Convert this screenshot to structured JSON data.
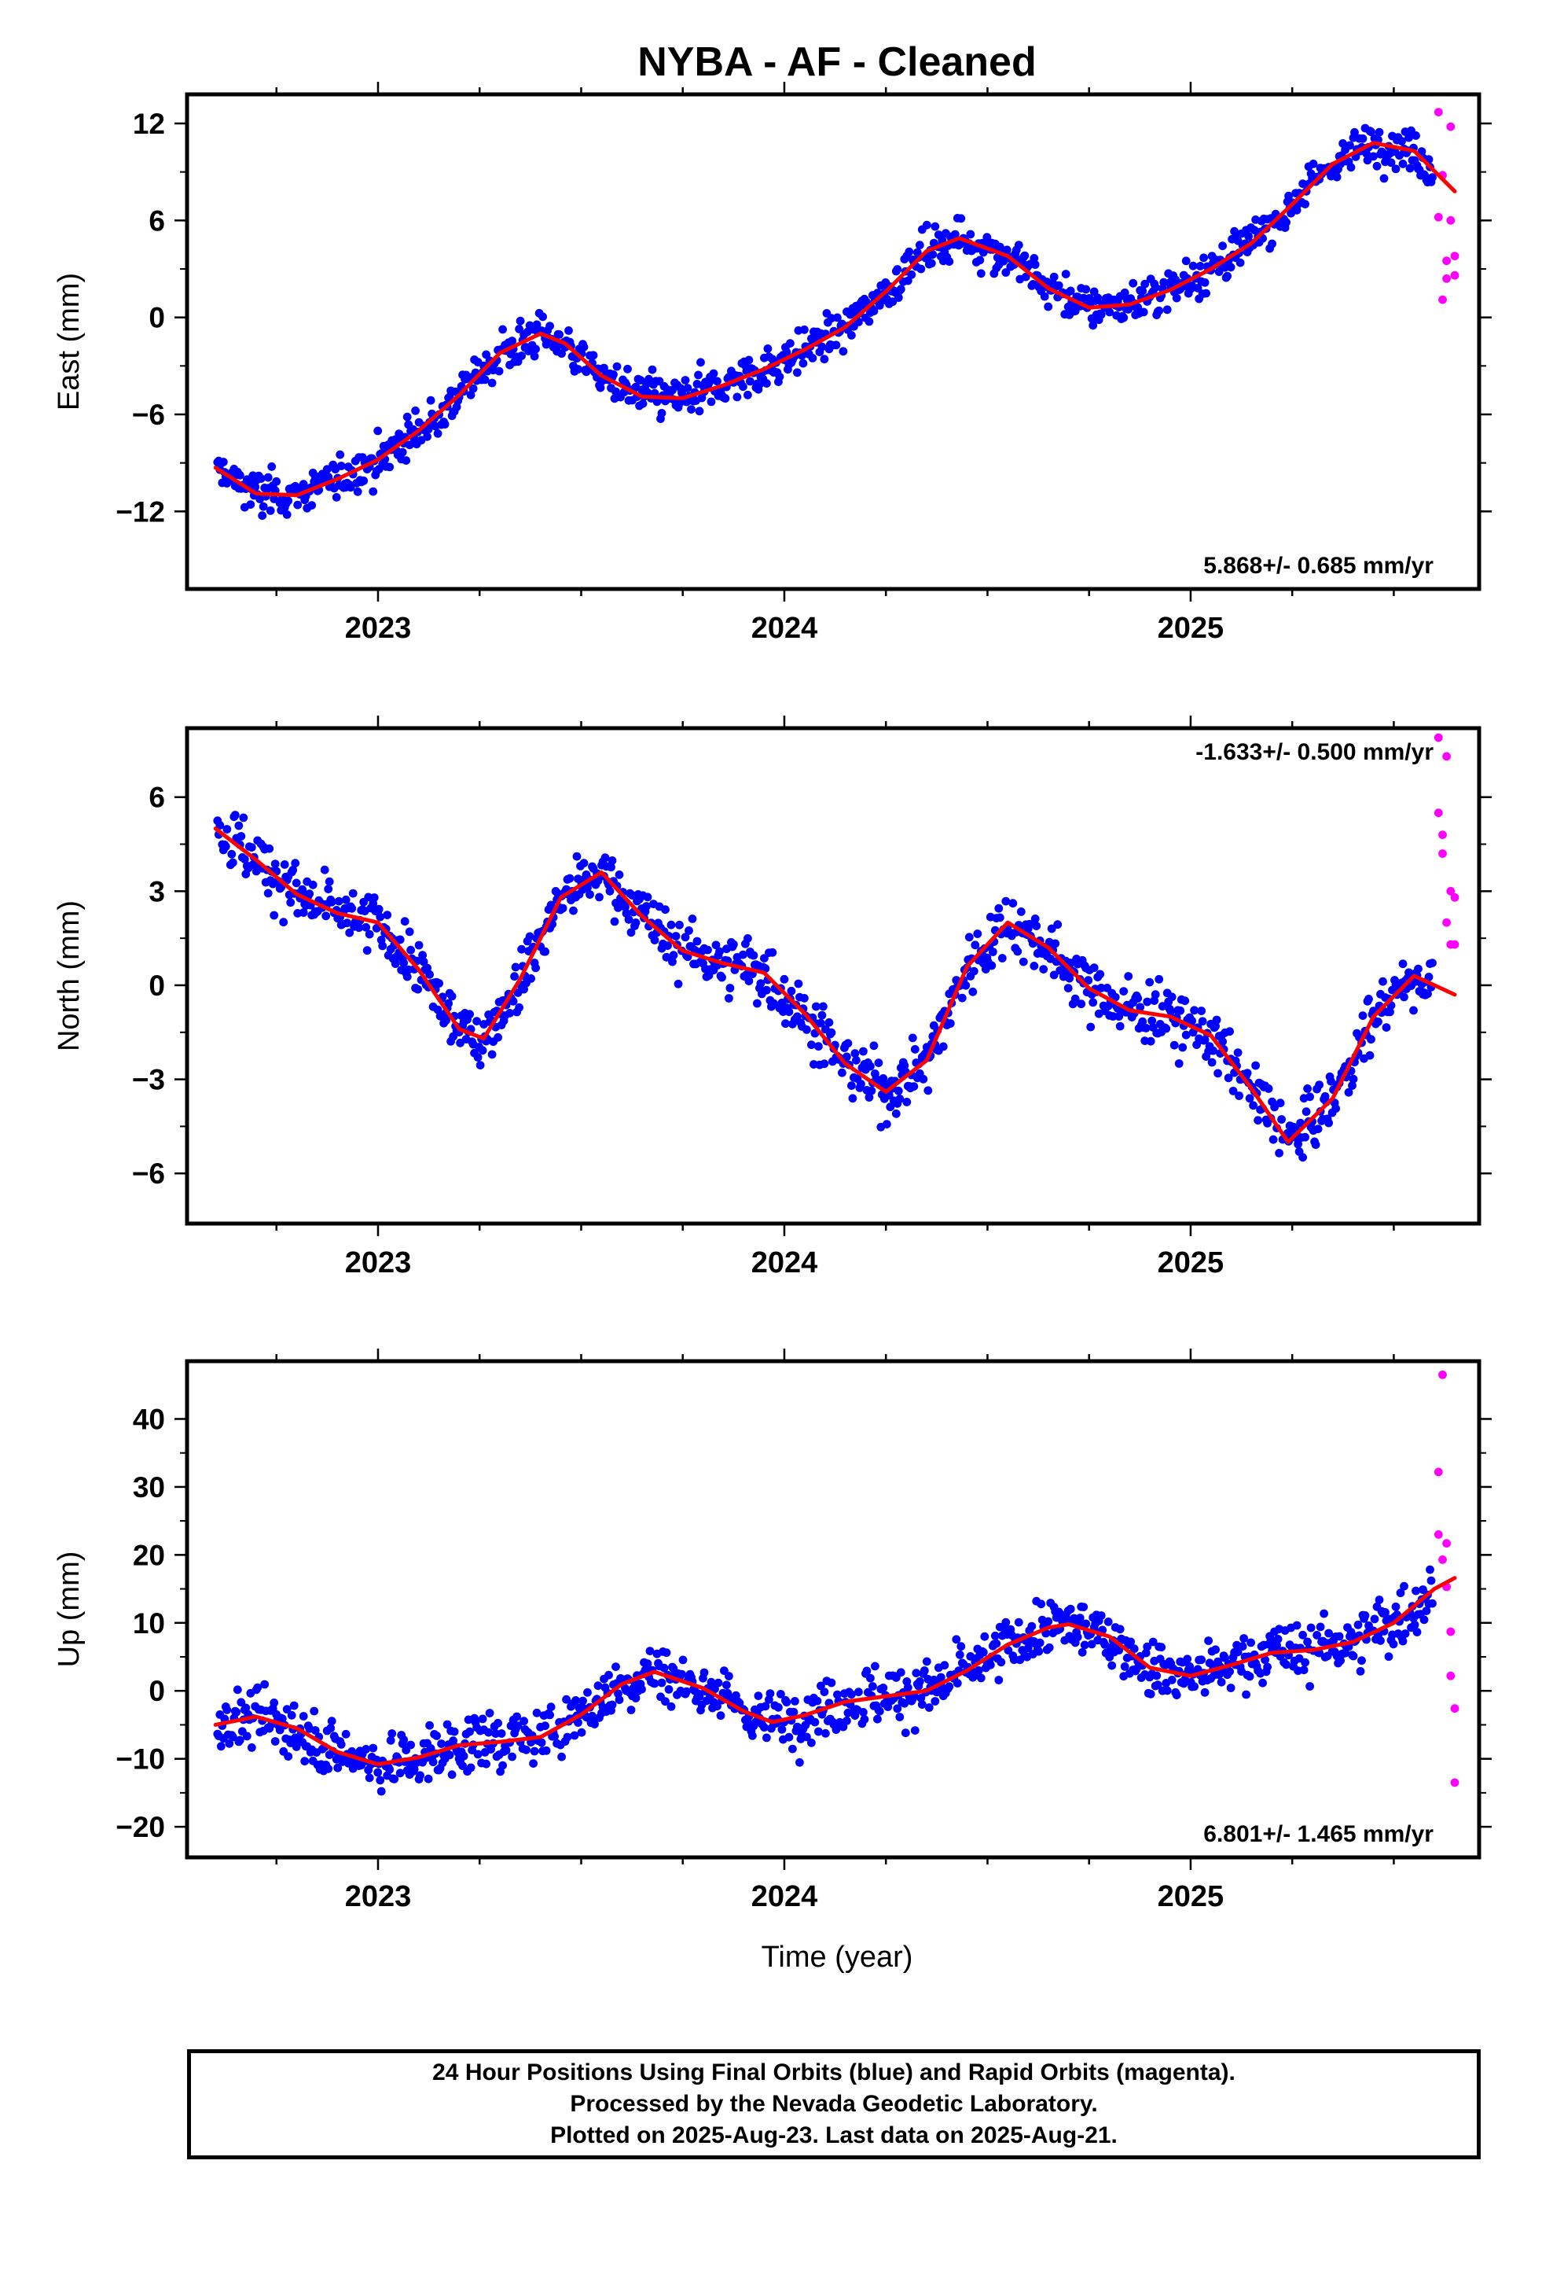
{
  "title": "NYBA  - AF - Cleaned",
  "xlabel": "Time (year)",
  "footer": {
    "line1": "24 Hour Positions Using Final Orbits (blue) and Rapid Orbits (magenta).",
    "line2": "Processed by the Nevada Geodetic Laboratory.",
    "line3": "Plotted on 2025-Aug-23. Last data on 2025-Aug-21."
  },
  "colors": {
    "final": "#0000ff",
    "rapid": "#ff00ff",
    "fit": "#ff0000",
    "frame": "#000000"
  },
  "chart_data": [
    {
      "type": "scatter",
      "panel": "east",
      "ylabel": "East (mm)",
      "xlim": [
        2022.53,
        2025.71
      ],
      "ylim": [
        -16.8,
        13.8
      ],
      "xticks": [
        2023,
        2024,
        2025
      ],
      "yticks": [
        -12,
        -6,
        0,
        6,
        12
      ],
      "rate_label": "5.868+/- 0.685 mm/yr",
      "rate_position": "bottom-right",
      "fit": {
        "x": [
          2022.6,
          2022.7,
          2022.8,
          2022.9,
          2023.0,
          2023.1,
          2023.2,
          2023.3,
          2023.4,
          2023.46,
          2023.55,
          2023.65,
          2023.75,
          2023.85,
          2023.95,
          2024.05,
          2024.15,
          2024.25,
          2024.35,
          2024.43,
          2024.55,
          2024.65,
          2024.75,
          2024.85,
          2024.95,
          2025.05,
          2025.15,
          2025.25,
          2025.35,
          2025.45,
          2025.55,
          2025.65
        ],
        "y": [
          -9.3,
          -10.9,
          -11.0,
          -10.0,
          -8.8,
          -7.0,
          -4.8,
          -2.2,
          -1.0,
          -1.6,
          -3.6,
          -4.9,
          -5.0,
          -4.2,
          -3.2,
          -2.0,
          -0.6,
          1.6,
          4.1,
          4.9,
          3.8,
          1.8,
          0.6,
          0.8,
          1.7,
          3.0,
          4.6,
          7.0,
          9.5,
          10.8,
          10.3,
          7.8
        ]
      },
      "rapid": {
        "x": [
          2025.61,
          2025.61,
          2025.62,
          2025.62,
          2025.63,
          2025.63,
          2025.64,
          2025.64,
          2025.65,
          2025.65
        ],
        "y": [
          6.2,
          12.7,
          8.8,
          1.1,
          2.4,
          3.5,
          11.8,
          6.0,
          3.8,
          2.6
        ]
      },
      "series": [
        {
          "name": "Final Orbits",
          "trend": [
            -9.5,
            5.868
          ],
          "wiggle": 3.0,
          "spread": 1.1
        }
      ]
    },
    {
      "type": "scatter",
      "panel": "north",
      "ylabel": "North (mm)",
      "xlim": [
        2022.53,
        2025.71
      ],
      "ylim": [
        -7.6,
        8.2
      ],
      "xticks": [
        2023,
        2024,
        2025
      ],
      "yticks": [
        -6,
        -3,
        0,
        3,
        6
      ],
      "rate_label": "-1.633+/- 0.500 mm/yr",
      "rate_position": "top-right",
      "fit": {
        "x": [
          2022.6,
          2022.7,
          2022.8,
          2022.9,
          2023.0,
          2023.1,
          2023.2,
          2023.26,
          2023.35,
          2023.45,
          2023.55,
          2023.65,
          2023.75,
          2023.85,
          2023.95,
          2024.05,
          2024.15,
          2024.25,
          2024.35,
          2024.45,
          2024.55,
          2024.65,
          2024.75,
          2024.85,
          2024.95,
          2025.05,
          2025.15,
          2025.24,
          2025.35,
          2025.45,
          2025.55,
          2025.65
        ],
        "y": [
          5.0,
          4.0,
          2.9,
          2.3,
          2.0,
          0.5,
          -1.4,
          -1.7,
          0.2,
          2.8,
          3.6,
          2.2,
          1.1,
          0.7,
          0.4,
          -0.9,
          -2.5,
          -3.4,
          -2.4,
          0.6,
          2.0,
          1.2,
          -0.1,
          -0.8,
          -1.0,
          -1.6,
          -3.3,
          -5.0,
          -3.6,
          -1.0,
          0.3,
          -0.3
        ]
      },
      "rapid": {
        "x": [
          2025.61,
          2025.61,
          2025.62,
          2025.62,
          2025.63,
          2025.63,
          2025.64,
          2025.64,
          2025.65,
          2025.65
        ],
        "y": [
          7.9,
          5.5,
          4.8,
          4.2,
          7.3,
          2.0,
          1.3,
          3.0,
          1.3,
          2.8
        ]
      },
      "series": [
        {
          "name": "Final Orbits",
          "trend": [
            4.0,
            -1.633
          ],
          "wiggle": 2.2,
          "spread": 0.8
        }
      ]
    },
    {
      "type": "scatter",
      "panel": "up",
      "ylabel": "Up (mm)",
      "xlim": [
        2022.53,
        2025.71
      ],
      "ylim": [
        -24.5,
        48.5
      ],
      "xticks": [
        2023,
        2024,
        2025
      ],
      "yticks": [
        -20,
        -10,
        0,
        10,
        20,
        30,
        40
      ],
      "rate_label": "6.801+/- 1.465 mm/yr",
      "rate_position": "bottom-right",
      "fit": {
        "x": [
          2022.6,
          2022.7,
          2022.8,
          2022.9,
          2023.0,
          2023.1,
          2023.2,
          2023.3,
          2023.4,
          2023.5,
          2023.6,
          2023.68,
          2023.8,
          2023.9,
          2023.97,
          2024.05,
          2024.15,
          2024.25,
          2024.35,
          2024.45,
          2024.55,
          2024.65,
          2024.7,
          2024.8,
          2024.9,
          2025.0,
          2025.1,
          2025.2,
          2025.3,
          2025.4,
          2025.5,
          2025.6,
          2025.65
        ],
        "y": [
          -5.0,
          -3.8,
          -5.5,
          -9.0,
          -10.8,
          -9.8,
          -8.0,
          -7.5,
          -6.8,
          -3.5,
          1.0,
          2.8,
          0.4,
          -3.0,
          -4.6,
          -3.6,
          -1.6,
          -0.8,
          0.0,
          3.0,
          6.8,
          9.3,
          9.8,
          8.0,
          3.4,
          2.2,
          3.8,
          5.6,
          6.0,
          7.2,
          10.0,
          15.0,
          16.6
        ]
      },
      "rapid": {
        "x": [
          2025.61,
          2025.61,
          2025.62,
          2025.62,
          2025.63,
          2025.63,
          2025.64,
          2025.64,
          2025.65,
          2025.65
        ],
        "y": [
          23.0,
          32.2,
          46.5,
          19.3,
          21.7,
          15.3,
          8.7,
          2.2,
          -2.6,
          -13.5
        ]
      },
      "series": [
        {
          "name": "Final Orbits",
          "trend": [
            -5.0,
            6.801
          ],
          "wiggle": 4.0,
          "spread": 3.6
        }
      ]
    }
  ]
}
